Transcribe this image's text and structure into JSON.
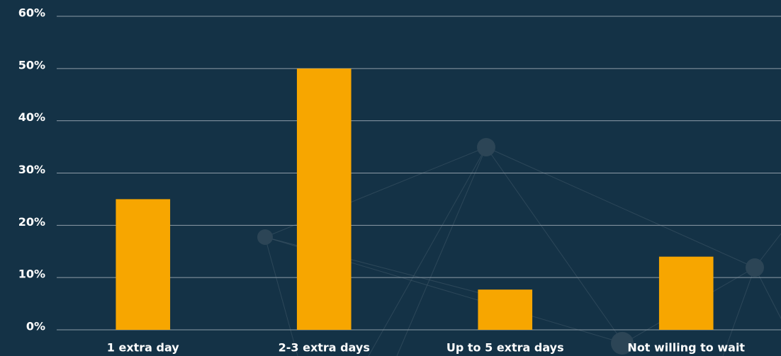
{
  "chart_data": {
    "type": "bar",
    "categories": [
      "1 extra day",
      "2-3 extra days",
      "Up to 5 extra days",
      "Not willing to wait"
    ],
    "values": [
      25,
      50,
      7.7,
      14
    ],
    "color": "#f7a600",
    "ylim": [
      0,
      60
    ],
    "yticks": [
      {
        "value": 0,
        "label": "0%"
      },
      {
        "value": 10,
        "label": "10%"
      },
      {
        "value": 20,
        "label": "20%"
      },
      {
        "value": 30,
        "label": "30%"
      },
      {
        "value": 40,
        "label": "40%"
      },
      {
        "value": 50,
        "label": "50%"
      },
      {
        "value": 60,
        "label": "60%"
      }
    ],
    "grid": true
  }
}
